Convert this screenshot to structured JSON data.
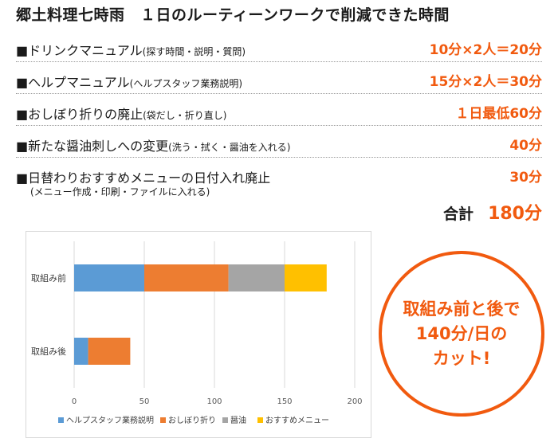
{
  "title": "郷土料理七時雨　１日のルーティーンワークで削減できた時間",
  "items": [
    {
      "label": "■ドリンクマニュアル",
      "note": "(探す時間・説明・質問)",
      "value": "10分×2人＝20分"
    },
    {
      "label": "■ヘルプマニュアル",
      "note": "(ヘルプスタッフ業務説明)",
      "value": "15分×2人＝30分"
    },
    {
      "label": "■おしぼり折りの廃止",
      "note": "(袋だし・折り直し)",
      "value": "１日最低60分"
    },
    {
      "label": "■新たな醤油刺しへの変更",
      "note": "(洗う・拭く・醤油を入れる)",
      "value": "40分"
    },
    {
      "label": "■日替わりおすすめメニューの日付入れ廃止",
      "note": "",
      "sub": "(メニュー作成・印刷・ファイルに入れる)",
      "value": "30分"
    }
  ],
  "total": {
    "label": "合計",
    "value": "180分"
  },
  "callout": "取組み前と後で\n140分/日の\nカット!",
  "chart_data": {
    "type": "bar",
    "orientation": "horizontal",
    "stacked": true,
    "categories": [
      "取組み前",
      "取組み後"
    ],
    "series": [
      {
        "name": "ヘルプスタッフ業務説明",
        "color": "#5b9bd5",
        "values": [
          50,
          10
        ]
      },
      {
        "name": "おしぼり折り",
        "color": "#ed7d31",
        "values": [
          60,
          30
        ]
      },
      {
        "name": "醤油",
        "color": "#a5a5a5",
        "values": [
          40,
          0
        ]
      },
      {
        "name": "おすすめメニュー",
        "color": "#ffc000",
        "values": [
          30,
          0
        ]
      }
    ],
    "xticks": [
      "0",
      "50",
      "100",
      "150",
      "200"
    ],
    "xlim": [
      0,
      200
    ],
    "grid": true,
    "legend": "bottom"
  },
  "colors": {
    "accent": "#f15a0f"
  }
}
